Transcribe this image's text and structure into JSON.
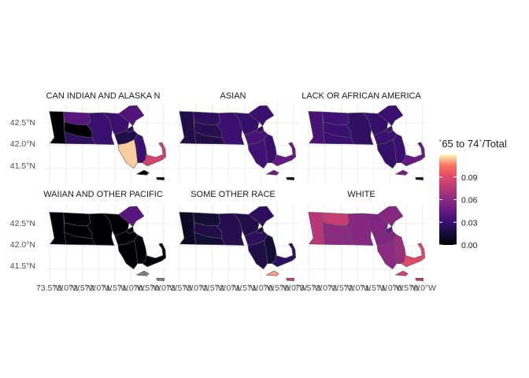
{
  "chart_data": {
    "type": "choropleth-facets",
    "region": "Massachusetts counties",
    "fill_variable": "`65 to 74`/Total",
    "legend": {
      "title": "`65 to 74`/Total",
      "ticks": [
        0.0,
        0.03,
        0.06,
        0.09
      ],
      "tick_labels": [
        "0.00",
        "0.03",
        "0.06",
        "0.09"
      ],
      "range": [
        0,
        0.12
      ],
      "palette": "magma",
      "placement": "right"
    },
    "y_axis": {
      "ticks": [
        42.5,
        42.0,
        41.5
      ],
      "tick_labels": [
        "42.5°N",
        "42.0°N",
        "41.5°N"
      ]
    },
    "x_axis": {
      "ticks": [
        -73.5,
        -73.0,
        -72.5,
        -72.0,
        -71.5,
        -71.0,
        -70.5,
        -70.0
      ],
      "tick_labels": [
        "73.5°W",
        "73.0°W",
        "72.5°W",
        "72.0°W",
        "71.5°W",
        "71.0°W",
        "70.5°W",
        "70.0°W"
      ]
    },
    "facet_labels": {
      "amind": "CAN INDIAN AND ALASKA N",
      "asian": "ASIAN",
      "black": "LACK OR AFRICAN AMERICA",
      "pacific": "WAIIAN AND OTHER PACIFIC",
      "other": "SOME OTHER RACE",
      "white": "WHITE"
    },
    "facets": [
      {
        "label": "AMERICAN INDIAN AND ALASKA NATIVE",
        "values": {
          "Berkshire": 0.0,
          "Franklin": 0.04,
          "Hampshire": 0.0,
          "Hampden": 0.025,
          "Worcester": 0.03,
          "Middlesex": 0.03,
          "Essex": 0.038,
          "Suffolk": 0.025,
          "Norfolk": 0.02,
          "Bristol": 0.115,
          "Plymouth": 0.03,
          "Barnstable": 0.085,
          "Dukes": 0.0,
          "Nantucket": 0.0
        }
      },
      {
        "label": "ASIAN",
        "values": {
          "Berkshire": 0.02,
          "Franklin": 0.025,
          "Hampshire": 0.022,
          "Hampden": 0.02,
          "Worcester": 0.03,
          "Middlesex": 0.028,
          "Essex": 0.03,
          "Suffolk": 0.025,
          "Norfolk": 0.035,
          "Bristol": 0.032,
          "Plymouth": 0.03,
          "Barnstable": 0.045,
          "Dukes": 0.05,
          "Nantucket": 0.01
        }
      },
      {
        "label": "BLACK OR AFRICAN AMERICAN",
        "values": {
          "Berkshire": 0.035,
          "Franklin": 0.032,
          "Hampshire": 0.03,
          "Hampden": 0.03,
          "Worcester": 0.026,
          "Middlesex": 0.028,
          "Essex": 0.03,
          "Suffolk": 0.032,
          "Norfolk": 0.03,
          "Bristol": 0.028,
          "Plymouth": 0.03,
          "Barnstable": 0.045,
          "Dukes": 0.05,
          "Nantucket": 0.015
        }
      },
      {
        "label": "NATIVE HAWAIIAN AND OTHER PACIFIC ISLANDER",
        "values": {
          "Berkshire": 0.0,
          "Franklin": 0.0,
          "Hampshire": 0.0,
          "Hampden": 0.0,
          "Worcester": 0.0,
          "Middlesex": 0.0,
          "Essex": 0.04,
          "Suffolk": 0.0,
          "Norfolk": 0.0,
          "Bristol": 0.0,
          "Plymouth": 0.0,
          "Barnstable": 0.0,
          "Dukes": null,
          "Nantucket": null
        }
      },
      {
        "label": "SOME OTHER RACE",
        "values": {
          "Berkshire": 0.01,
          "Franklin": 0.015,
          "Hampshire": 0.02,
          "Hampden": 0.015,
          "Worcester": 0.022,
          "Middlesex": 0.02,
          "Essex": 0.025,
          "Suffolk": 0.018,
          "Norfolk": 0.025,
          "Bristol": 0.02,
          "Plymouth": 0.015,
          "Barnstable": 0.025,
          "Dukes": 0.11,
          "Nantucket": 0.08
        }
      },
      {
        "label": "WHITE",
        "values": {
          "Berkshire": 0.075,
          "Franklin": 0.08,
          "Hampshire": 0.06,
          "Hampden": 0.06,
          "Worcester": 0.058,
          "Middlesex": 0.055,
          "Essex": 0.058,
          "Suffolk": 0.045,
          "Norfolk": 0.055,
          "Bristol": 0.06,
          "Plymouth": 0.065,
          "Barnstable": 0.09,
          "Dukes": 0.085,
          "Nantucket": 0.075
        }
      }
    ]
  }
}
